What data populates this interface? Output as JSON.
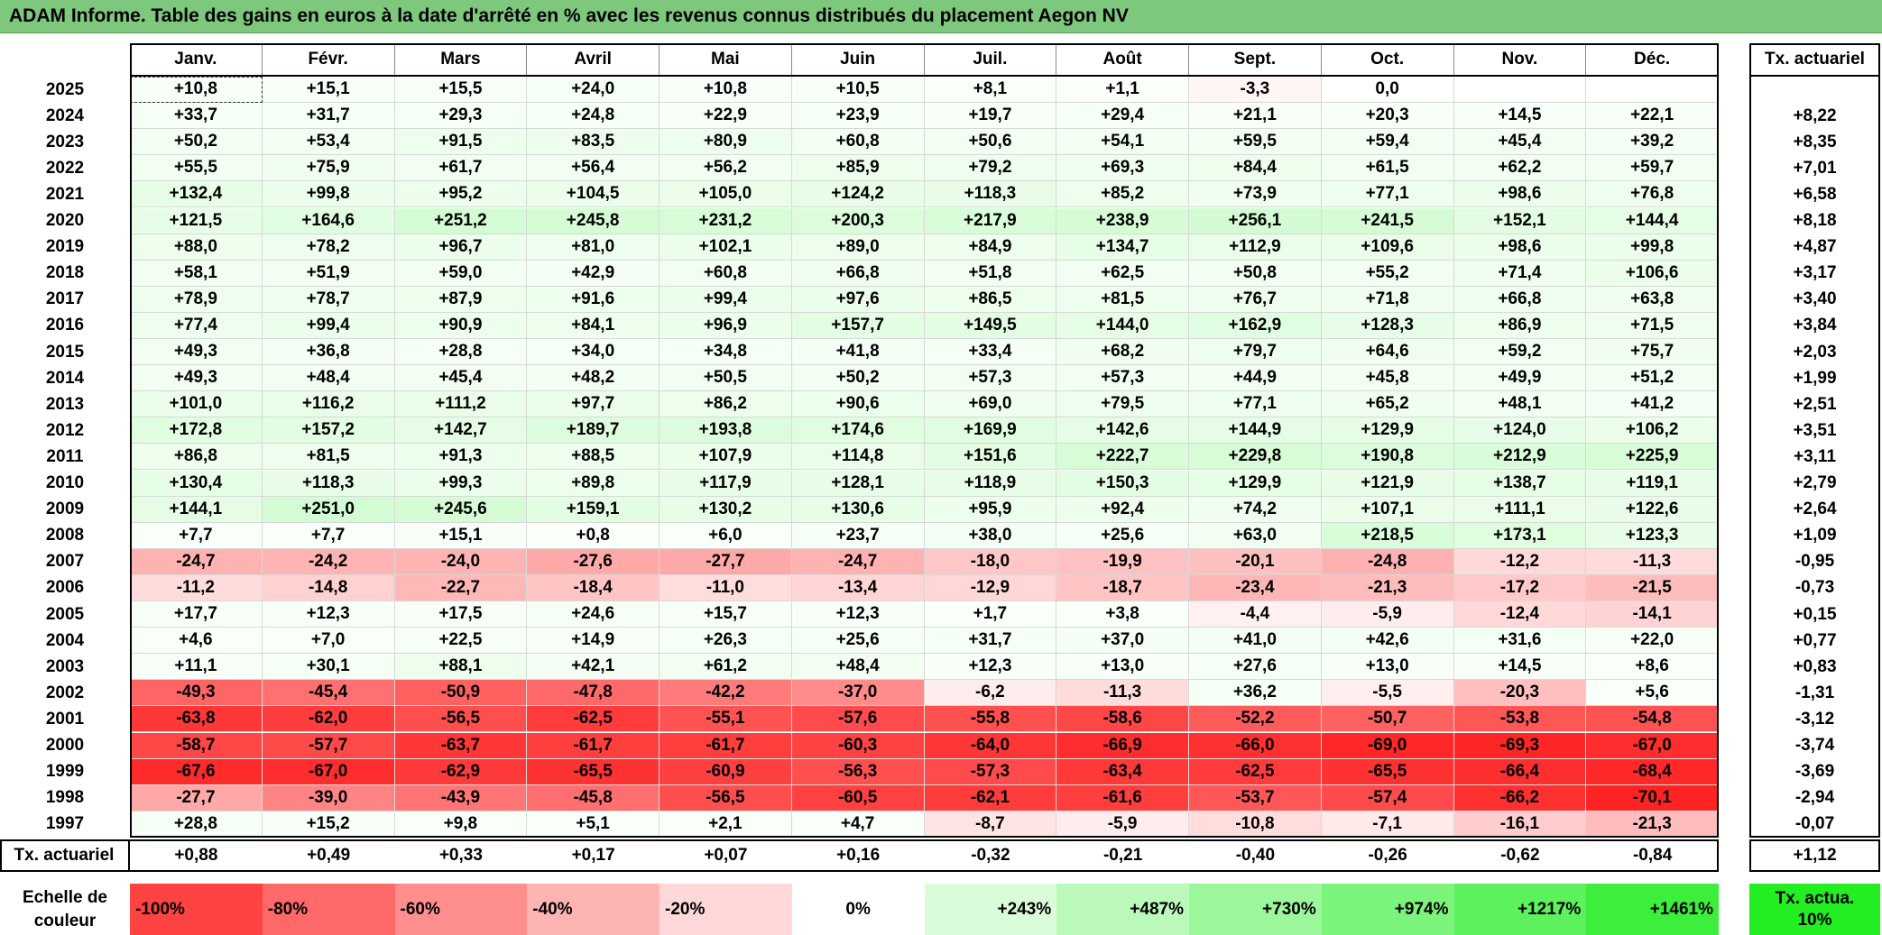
{
  "title": "ADAM Informe. Table des gains en euros à la date d'arrêté en % avec les revenus connus distribués du placement Aegon NV",
  "table": {
    "columns": [
      "Janv.",
      "Févr.",
      "Mars",
      "Avril",
      "Mai",
      "Juin",
      "Juil.",
      "Août",
      "Sept.",
      "Oct.",
      "Nov.",
      "Déc."
    ],
    "tx_header": "Tx. actuariel",
    "rows": [
      {
        "label": "2025",
        "cells": [
          "+10,8",
          "+15,1",
          "+15,5",
          "+24,0",
          "+10,8",
          "+10,5",
          "+8,1",
          "+1,1",
          "-3,3",
          "0,0",
          null,
          null
        ],
        "tx": null
      },
      {
        "label": "2024",
        "cells": [
          "+33,7",
          "+31,7",
          "+29,3",
          "+24,8",
          "+22,9",
          "+23,9",
          "+19,7",
          "+29,4",
          "+21,1",
          "+20,3",
          "+14,5",
          "+22,1"
        ],
        "tx": "+8,22"
      },
      {
        "label": "2023",
        "cells": [
          "+50,2",
          "+53,4",
          "+91,5",
          "+83,5",
          "+80,9",
          "+60,8",
          "+50,6",
          "+54,1",
          "+59,5",
          "+59,4",
          "+45,4",
          "+39,2"
        ],
        "tx": "+8,35"
      },
      {
        "label": "2022",
        "cells": [
          "+55,5",
          "+75,9",
          "+61,7",
          "+56,4",
          "+56,2",
          "+85,9",
          "+79,2",
          "+69,3",
          "+84,4",
          "+61,5",
          "+62,2",
          "+59,7"
        ],
        "tx": "+7,01"
      },
      {
        "label": "2021",
        "cells": [
          "+132,4",
          "+99,8",
          "+95,2",
          "+104,5",
          "+105,0",
          "+124,2",
          "+118,3",
          "+85,2",
          "+73,9",
          "+77,1",
          "+98,6",
          "+76,8"
        ],
        "tx": "+6,58"
      },
      {
        "label": "2020",
        "cells": [
          "+121,5",
          "+164,6",
          "+251,2",
          "+245,8",
          "+231,2",
          "+200,3",
          "+217,9",
          "+238,9",
          "+256,1",
          "+241,5",
          "+152,1",
          "+144,4"
        ],
        "tx": "+8,18"
      },
      {
        "label": "2019",
        "cells": [
          "+88,0",
          "+78,2",
          "+96,7",
          "+81,0",
          "+102,1",
          "+89,0",
          "+84,9",
          "+134,7",
          "+112,9",
          "+109,6",
          "+98,6",
          "+99,8"
        ],
        "tx": "+4,87"
      },
      {
        "label": "2018",
        "cells": [
          "+58,1",
          "+51,9",
          "+59,0",
          "+42,9",
          "+60,8",
          "+66,8",
          "+51,8",
          "+62,5",
          "+50,8",
          "+55,2",
          "+71,4",
          "+106,6"
        ],
        "tx": "+3,17"
      },
      {
        "label": "2017",
        "cells": [
          "+78,9",
          "+78,7",
          "+87,9",
          "+91,6",
          "+99,4",
          "+97,6",
          "+86,5",
          "+81,5",
          "+76,7",
          "+71,8",
          "+66,8",
          "+63,8"
        ],
        "tx": "+3,40"
      },
      {
        "label": "2016",
        "cells": [
          "+77,4",
          "+99,4",
          "+90,9",
          "+84,1",
          "+96,9",
          "+157,7",
          "+149,5",
          "+144,0",
          "+162,9",
          "+128,3",
          "+86,9",
          "+71,5"
        ],
        "tx": "+3,84"
      },
      {
        "label": "2015",
        "cells": [
          "+49,3",
          "+36,8",
          "+28,8",
          "+34,0",
          "+34,8",
          "+41,8",
          "+33,4",
          "+68,2",
          "+79,7",
          "+64,6",
          "+59,2",
          "+75,7"
        ],
        "tx": "+2,03"
      },
      {
        "label": "2014",
        "cells": [
          "+49,3",
          "+48,4",
          "+45,4",
          "+48,2",
          "+50,5",
          "+50,2",
          "+57,3",
          "+57,3",
          "+44,9",
          "+45,8",
          "+49,9",
          "+51,2"
        ],
        "tx": "+1,99"
      },
      {
        "label": "2013",
        "cells": [
          "+101,0",
          "+116,2",
          "+111,2",
          "+97,7",
          "+86,2",
          "+90,6",
          "+69,0",
          "+79,5",
          "+77,1",
          "+65,2",
          "+48,1",
          "+41,2"
        ],
        "tx": "+2,51"
      },
      {
        "label": "2012",
        "cells": [
          "+172,8",
          "+157,2",
          "+142,7",
          "+189,7",
          "+193,8",
          "+174,6",
          "+169,9",
          "+142,6",
          "+144,9",
          "+129,9",
          "+124,0",
          "+106,2"
        ],
        "tx": "+3,51"
      },
      {
        "label": "2011",
        "cells": [
          "+86,8",
          "+81,5",
          "+91,3",
          "+88,5",
          "+107,9",
          "+114,8",
          "+151,6",
          "+222,7",
          "+229,8",
          "+190,8",
          "+212,9",
          "+225,9"
        ],
        "tx": "+3,11"
      },
      {
        "label": "2010",
        "cells": [
          "+130,4",
          "+118,3",
          "+99,3",
          "+89,8",
          "+117,9",
          "+128,1",
          "+118,9",
          "+150,3",
          "+129,9",
          "+121,9",
          "+138,7",
          "+119,1"
        ],
        "tx": "+2,79"
      },
      {
        "label": "2009",
        "cells": [
          "+144,1",
          "+251,0",
          "+245,6",
          "+159,1",
          "+130,2",
          "+130,6",
          "+95,9",
          "+92,4",
          "+74,2",
          "+107,1",
          "+111,1",
          "+122,6"
        ],
        "tx": "+2,64"
      },
      {
        "label": "2008",
        "cells": [
          "+7,7",
          "+7,7",
          "+15,1",
          "+0,8",
          "+6,0",
          "+23,7",
          "+38,0",
          "+25,6",
          "+63,0",
          "+218,5",
          "+173,1",
          "+123,3"
        ],
        "tx": "+1,09"
      },
      {
        "label": "2007",
        "cells": [
          "-24,7",
          "-24,2",
          "-24,0",
          "-27,6",
          "-27,7",
          "-24,7",
          "-18,0",
          "-19,9",
          "-20,1",
          "-24,8",
          "-12,2",
          "-11,3"
        ],
        "tx": "-0,95"
      },
      {
        "label": "2006",
        "cells": [
          "-11,2",
          "-14,8",
          "-22,7",
          "-18,4",
          "-11,0",
          "-13,4",
          "-12,9",
          "-18,7",
          "-23,4",
          "-21,3",
          "-17,2",
          "-21,5"
        ],
        "tx": "-0,73"
      },
      {
        "label": "2005",
        "cells": [
          "+17,7",
          "+12,3",
          "+17,5",
          "+24,6",
          "+15,7",
          "+12,3",
          "+1,7",
          "+3,8",
          "-4,4",
          "-5,9",
          "-12,4",
          "-14,1"
        ],
        "tx": "+0,15"
      },
      {
        "label": "2004",
        "cells": [
          "+4,6",
          "+7,0",
          "+22,5",
          "+14,9",
          "+26,3",
          "+25,6",
          "+31,7",
          "+37,0",
          "+41,0",
          "+42,6",
          "+31,6",
          "+22,0"
        ],
        "tx": "+0,77"
      },
      {
        "label": "2003",
        "cells": [
          "+11,1",
          "+30,1",
          "+88,1",
          "+42,1",
          "+61,2",
          "+48,4",
          "+12,3",
          "+13,0",
          "+27,6",
          "+13,0",
          "+14,5",
          "+8,6"
        ],
        "tx": "+0,83"
      },
      {
        "label": "2002",
        "cells": [
          "-49,3",
          "-45,4",
          "-50,9",
          "-47,8",
          "-42,2",
          "-37,0",
          "-6,2",
          "-11,3",
          "+36,2",
          "-5,5",
          "-20,3",
          "+5,6"
        ],
        "tx": "-1,31"
      },
      {
        "label": "2001",
        "cells": [
          "-63,8",
          "-62,0",
          "-56,5",
          "-62,5",
          "-55,1",
          "-57,6",
          "-55,8",
          "-58,6",
          "-52,2",
          "-50,7",
          "-53,8",
          "-54,8"
        ],
        "tx": "-3,12"
      },
      {
        "label": "2000",
        "cells": [
          "-58,7",
          "-57,7",
          "-63,7",
          "-61,7",
          "-61,7",
          "-60,3",
          "-64,0",
          "-66,9",
          "-66,0",
          "-69,0",
          "-69,3",
          "-67,0"
        ],
        "tx": "-3,74"
      },
      {
        "label": "1999",
        "cells": [
          "-67,6",
          "-67,0",
          "-62,9",
          "-65,5",
          "-60,9",
          "-56,3",
          "-57,3",
          "-63,4",
          "-62,5",
          "-65,5",
          "-66,4",
          "-68,4"
        ],
        "tx": "-3,69"
      },
      {
        "label": "1998",
        "cells": [
          "-27,7",
          "-39,0",
          "-43,9",
          "-45,8",
          "-56,5",
          "-60,5",
          "-62,1",
          "-61,6",
          "-53,7",
          "-57,4",
          "-66,2",
          "-70,1"
        ],
        "tx": "-2,94"
      },
      {
        "label": "1997",
        "cells": [
          "+28,8",
          "+15,2",
          "+9,8",
          "+5,1",
          "+2,1",
          "+4,7",
          "-8,7",
          "-5,9",
          "-10,8",
          "-7,1",
          "-16,1",
          "-21,3"
        ],
        "tx": "-0,07"
      }
    ],
    "footer": {
      "label": "Tx. actuariel",
      "cells": [
        "+0,88",
        "+0,49",
        "+0,33",
        "+0,17",
        "+0,07",
        "+0,16",
        "-0,32",
        "-0,21",
        "-0,40",
        "-0,26",
        "-0,62",
        "-0,84"
      ],
      "tx": "+1,12"
    }
  },
  "legend": {
    "title": "Echelle de couleur",
    "labels": [
      "-100%",
      "-80%",
      "-60%",
      "-40%",
      "-20%",
      "0%",
      "+243%",
      "+487%",
      "+730%",
      "+974%",
      "+1217%",
      "+1461%"
    ],
    "tx_label": "Tx. actua. 10%"
  }
}
